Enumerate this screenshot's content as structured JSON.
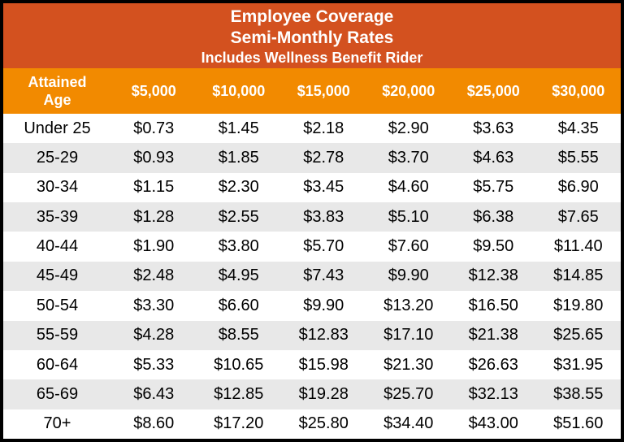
{
  "title": {
    "line1": "Employee Coverage",
    "line2": "Semi-Monthly Rates",
    "line3": "Includes Wellness Benefit Rider"
  },
  "table": {
    "age_header": "Attained Age",
    "columns": [
      "$5,000",
      "$10,000",
      "$15,000",
      "$20,000",
      "$25,000",
      "$30,000"
    ],
    "rows": [
      {
        "age": "Under 25",
        "rates": [
          "$0.73",
          "$1.45",
          "$2.18",
          "$2.90",
          "$3.63",
          "$4.35"
        ]
      },
      {
        "age": "25-29",
        "rates": [
          "$0.93",
          "$1.85",
          "$2.78",
          "$3.70",
          "$4.63",
          "$5.55"
        ]
      },
      {
        "age": "30-34",
        "rates": [
          "$1.15",
          "$2.30",
          "$3.45",
          "$4.60",
          "$5.75",
          "$6.90"
        ]
      },
      {
        "age": "35-39",
        "rates": [
          "$1.28",
          "$2.55",
          "$3.83",
          "$5.10",
          "$6.38",
          "$7.65"
        ]
      },
      {
        "age": "40-44",
        "rates": [
          "$1.90",
          "$3.80",
          "$5.70",
          "$7.60",
          "$9.50",
          "$11.40"
        ]
      },
      {
        "age": "45-49",
        "rates": [
          "$2.48",
          "$4.95",
          "$7.43",
          "$9.90",
          "$12.38",
          "$14.85"
        ]
      },
      {
        "age": "50-54",
        "rates": [
          "$3.30",
          "$6.60",
          "$9.90",
          "$13.20",
          "$16.50",
          "$19.80"
        ]
      },
      {
        "age": "55-59",
        "rates": [
          "$4.28",
          "$8.55",
          "$12.83",
          "$17.10",
          "$21.38",
          "$25.65"
        ]
      },
      {
        "age": "60-64",
        "rates": [
          "$5.33",
          "$10.65",
          "$15.98",
          "$21.30",
          "$26.63",
          "$31.95"
        ]
      },
      {
        "age": "65-69",
        "rates": [
          "$6.43",
          "$12.85",
          "$19.28",
          "$25.70",
          "$32.13",
          "$38.55"
        ]
      },
      {
        "age": "70+",
        "rates": [
          "$8.60",
          "$17.20",
          "$25.80",
          "$34.40",
          "$43.00",
          "$51.60"
        ]
      }
    ]
  },
  "colors": {
    "title_band": "#D3511F",
    "header_band": "#F28A00",
    "stripe_row": "#E8E8E8",
    "border": "#000000",
    "header_text": "#FFFFFF",
    "data_text": "#000000"
  }
}
